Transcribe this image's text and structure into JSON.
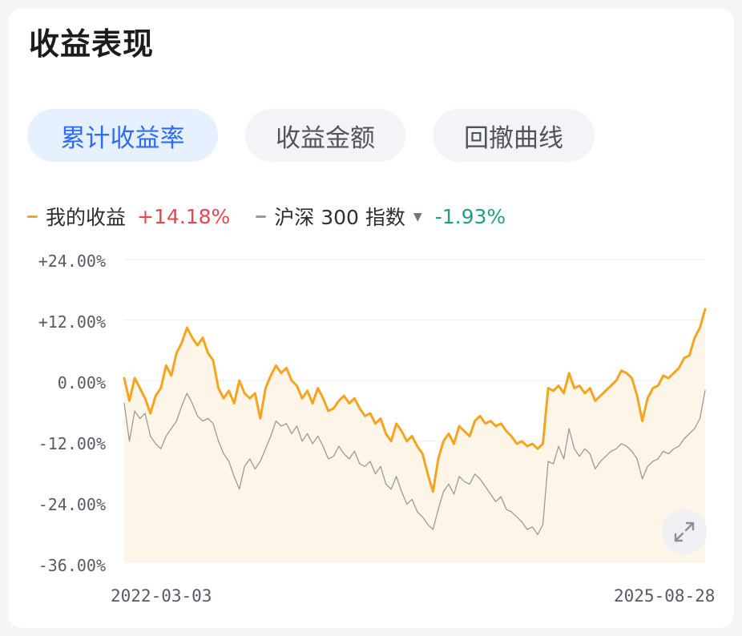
{
  "header": {
    "title": "收益表现"
  },
  "tabs": [
    {
      "label": "累计收益率",
      "active": true
    },
    {
      "label": "收益金额",
      "active": false
    },
    {
      "label": "回撤曲线",
      "active": false
    }
  ],
  "legend": {
    "mine": {
      "name": "我的收益",
      "value": "+14.18%",
      "color": "#f5a41f"
    },
    "benchmark": {
      "name": "沪深 300 指数",
      "value": "-1.93%",
      "color": "#9a9a9a"
    }
  },
  "icons": {
    "dropdown": "caret-down-icon",
    "expand": "expand-icon"
  },
  "chart_data": {
    "type": "line",
    "x_start": "2022-03-03",
    "x_end": "2025-08-28",
    "ylim": [
      -36,
      24
    ],
    "y_ticks": [
      "+24.00%",
      "+12.00%",
      "0.00%",
      "-12.00%",
      "-24.00%",
      "-36.00%"
    ],
    "y_tick_values": [
      24,
      12,
      0,
      -12,
      -24,
      -36
    ],
    "x_tick_labels": [
      "2022-03-03",
      "2025-08-28"
    ],
    "grid": true,
    "series": [
      {
        "name": "我的收益",
        "color": "#f5a41f",
        "fill": "#fdf6e8",
        "points": [
          [
            0.0,
            0.5
          ],
          [
            0.01,
            -4.0
          ],
          [
            0.02,
            0.5
          ],
          [
            0.03,
            -1.5
          ],
          [
            0.04,
            -3.5
          ],
          [
            0.05,
            -6.5
          ],
          [
            0.06,
            -3.0
          ],
          [
            0.07,
            -1.5
          ],
          [
            0.08,
            3.0
          ],
          [
            0.09,
            1.0
          ],
          [
            0.1,
            5.5
          ],
          [
            0.11,
            7.5
          ],
          [
            0.12,
            10.5
          ],
          [
            0.13,
            8.5
          ],
          [
            0.14,
            7.0
          ],
          [
            0.15,
            8.5
          ],
          [
            0.16,
            5.5
          ],
          [
            0.17,
            4.0
          ],
          [
            0.18,
            -1.5
          ],
          [
            0.19,
            -3.5
          ],
          [
            0.2,
            -2.0
          ],
          [
            0.21,
            -4.5
          ],
          [
            0.22,
            0.0
          ],
          [
            0.23,
            -2.5
          ],
          [
            0.24,
            -3.5
          ],
          [
            0.25,
            -2.5
          ],
          [
            0.26,
            -7.5
          ],
          [
            0.27,
            -1.5
          ],
          [
            0.28,
            1.0
          ],
          [
            0.29,
            3.0
          ],
          [
            0.3,
            1.5
          ],
          [
            0.31,
            2.5
          ],
          [
            0.32,
            0.0
          ],
          [
            0.33,
            -1.0
          ],
          [
            0.34,
            -3.5
          ],
          [
            0.35,
            -2.0
          ],
          [
            0.36,
            -4.5
          ],
          [
            0.37,
            -1.5
          ],
          [
            0.38,
            -3.5
          ],
          [
            0.39,
            -6.0
          ],
          [
            0.4,
            -5.5
          ],
          [
            0.41,
            -4.0
          ],
          [
            0.42,
            -3.0
          ],
          [
            0.43,
            -4.5
          ],
          [
            0.44,
            -3.5
          ],
          [
            0.45,
            -5.5
          ],
          [
            0.46,
            -7.0
          ],
          [
            0.47,
            -6.5
          ],
          [
            0.48,
            -8.5
          ],
          [
            0.49,
            -7.5
          ],
          [
            0.5,
            -10.5
          ],
          [
            0.51,
            -12.0
          ],
          [
            0.52,
            -8.5
          ],
          [
            0.53,
            -10.0
          ],
          [
            0.54,
            -12.0
          ],
          [
            0.55,
            -11.0
          ],
          [
            0.56,
            -13.0
          ],
          [
            0.57,
            -14.5
          ],
          [
            0.58,
            -18.5
          ],
          [
            0.59,
            -22.0
          ],
          [
            0.6,
            -15.5
          ],
          [
            0.61,
            -12.0
          ],
          [
            0.62,
            -10.5
          ],
          [
            0.63,
            -12.5
          ],
          [
            0.64,
            -9.0
          ],
          [
            0.65,
            -10.0
          ],
          [
            0.66,
            -11.0
          ],
          [
            0.67,
            -8.0
          ],
          [
            0.68,
            -7.0
          ],
          [
            0.69,
            -8.5
          ],
          [
            0.7,
            -8.0
          ],
          [
            0.71,
            -9.0
          ],
          [
            0.72,
            -8.5
          ],
          [
            0.73,
            -10.0
          ],
          [
            0.74,
            -11.0
          ],
          [
            0.75,
            -12.5
          ],
          [
            0.76,
            -12.0
          ],
          [
            0.77,
            -13.0
          ],
          [
            0.78,
            -12.5
          ],
          [
            0.79,
            -13.5
          ],
          [
            0.8,
            -12.5
          ],
          [
            0.81,
            -1.5
          ],
          [
            0.82,
            -2.0
          ],
          [
            0.83,
            -1.0
          ],
          [
            0.84,
            -2.5
          ],
          [
            0.85,
            1.5
          ],
          [
            0.86,
            -1.5
          ],
          [
            0.87,
            -1.0
          ],
          [
            0.88,
            -2.5
          ],
          [
            0.89,
            -1.5
          ],
          [
            0.9,
            -4.0
          ],
          [
            0.91,
            -3.0
          ],
          [
            0.92,
            -2.0
          ],
          [
            0.93,
            -1.0
          ],
          [
            0.94,
            0.0
          ],
          [
            0.95,
            2.0
          ],
          [
            0.96,
            1.5
          ],
          [
            0.97,
            0.5
          ],
          [
            0.98,
            -3.0
          ],
          [
            0.99,
            -8.0
          ],
          [
            1.0,
            -3.5
          ],
          [
            1.01,
            -1.5
          ],
          [
            1.02,
            -1.0
          ],
          [
            1.03,
            1.0
          ],
          [
            1.04,
            0.5
          ],
          [
            1.05,
            1.5
          ],
          [
            1.06,
            2.5
          ],
          [
            1.07,
            4.5
          ],
          [
            1.08,
            5.0
          ],
          [
            1.09,
            8.5
          ],
          [
            1.1,
            10.5
          ],
          [
            1.11,
            14.18
          ]
        ]
      },
      {
        "name": "沪深 300 指数",
        "color": "#9a9a9a",
        "points": [
          [
            0.0,
            -4.5
          ],
          [
            0.01,
            -12.0
          ],
          [
            0.02,
            -6.0
          ],
          [
            0.03,
            -7.5
          ],
          [
            0.04,
            -6.5
          ],
          [
            0.05,
            -11.0
          ],
          [
            0.06,
            -12.5
          ],
          [
            0.07,
            -13.5
          ],
          [
            0.08,
            -11.0
          ],
          [
            0.09,
            -9.5
          ],
          [
            0.1,
            -8.0
          ],
          [
            0.11,
            -5.0
          ],
          [
            0.12,
            -2.5
          ],
          [
            0.13,
            -4.5
          ],
          [
            0.14,
            -7.0
          ],
          [
            0.15,
            -8.0
          ],
          [
            0.16,
            -7.5
          ],
          [
            0.17,
            -8.5
          ],
          [
            0.18,
            -12.0
          ],
          [
            0.19,
            -14.5
          ],
          [
            0.2,
            -16.0
          ],
          [
            0.21,
            -19.0
          ],
          [
            0.22,
            -21.5
          ],
          [
            0.23,
            -17.0
          ],
          [
            0.24,
            -15.5
          ],
          [
            0.25,
            -17.5
          ],
          [
            0.26,
            -16.0
          ],
          [
            0.27,
            -13.5
          ],
          [
            0.28,
            -11.0
          ],
          [
            0.29,
            -8.0
          ],
          [
            0.3,
            -9.0
          ],
          [
            0.31,
            -8.5
          ],
          [
            0.32,
            -10.5
          ],
          [
            0.33,
            -9.0
          ],
          [
            0.34,
            -12.0
          ],
          [
            0.35,
            -10.5
          ],
          [
            0.36,
            -12.5
          ],
          [
            0.37,
            -11.0
          ],
          [
            0.38,
            -13.0
          ],
          [
            0.39,
            -15.5
          ],
          [
            0.4,
            -15.0
          ],
          [
            0.41,
            -13.0
          ],
          [
            0.42,
            -14.5
          ],
          [
            0.43,
            -15.5
          ],
          [
            0.44,
            -14.0
          ],
          [
            0.45,
            -16.5
          ],
          [
            0.46,
            -17.0
          ],
          [
            0.47,
            -16.0
          ],
          [
            0.48,
            -18.5
          ],
          [
            0.49,
            -17.0
          ],
          [
            0.5,
            -20.5
          ],
          [
            0.51,
            -21.5
          ],
          [
            0.52,
            -19.0
          ],
          [
            0.53,
            -22.0
          ],
          [
            0.54,
            -24.5
          ],
          [
            0.55,
            -23.5
          ],
          [
            0.56,
            -26.0
          ],
          [
            0.57,
            -27.0
          ],
          [
            0.58,
            -28.5
          ],
          [
            0.59,
            -29.5
          ],
          [
            0.6,
            -25.5
          ],
          [
            0.61,
            -22.0
          ],
          [
            0.62,
            -20.5
          ],
          [
            0.63,
            -22.5
          ],
          [
            0.64,
            -19.0
          ],
          [
            0.65,
            -20.0
          ],
          [
            0.66,
            -20.5
          ],
          [
            0.67,
            -18.5
          ],
          [
            0.68,
            -19.5
          ],
          [
            0.69,
            -21.0
          ],
          [
            0.7,
            -22.5
          ],
          [
            0.71,
            -24.0
          ],
          [
            0.72,
            -23.0
          ],
          [
            0.73,
            -25.5
          ],
          [
            0.74,
            -26.0
          ],
          [
            0.75,
            -27.0
          ],
          [
            0.76,
            -28.0
          ],
          [
            0.77,
            -29.5
          ],
          [
            0.78,
            -29.0
          ],
          [
            0.79,
            -30.5
          ],
          [
            0.8,
            -28.5
          ],
          [
            0.81,
            -16.0
          ],
          [
            0.82,
            -16.5
          ],
          [
            0.83,
            -13.0
          ],
          [
            0.84,
            -15.5
          ],
          [
            0.85,
            -9.5
          ],
          [
            0.86,
            -13.5
          ],
          [
            0.87,
            -15.0
          ],
          [
            0.88,
            -13.5
          ],
          [
            0.89,
            -14.5
          ],
          [
            0.9,
            -17.5
          ],
          [
            0.91,
            -16.0
          ],
          [
            0.92,
            -15.0
          ],
          [
            0.93,
            -14.0
          ],
          [
            0.94,
            -13.5
          ],
          [
            0.95,
            -12.5
          ],
          [
            0.96,
            -13.0
          ],
          [
            0.97,
            -14.0
          ],
          [
            0.98,
            -15.5
          ],
          [
            0.99,
            -19.5
          ],
          [
            1.0,
            -17.0
          ],
          [
            1.01,
            -16.0
          ],
          [
            1.02,
            -15.5
          ],
          [
            1.03,
            -14.0
          ],
          [
            1.04,
            -14.5
          ],
          [
            1.05,
            -13.5
          ],
          [
            1.06,
            -13.0
          ],
          [
            1.07,
            -11.5
          ],
          [
            1.08,
            -10.5
          ],
          [
            1.09,
            -9.5
          ],
          [
            1.1,
            -7.5
          ],
          [
            1.11,
            -1.93
          ]
        ]
      }
    ]
  }
}
